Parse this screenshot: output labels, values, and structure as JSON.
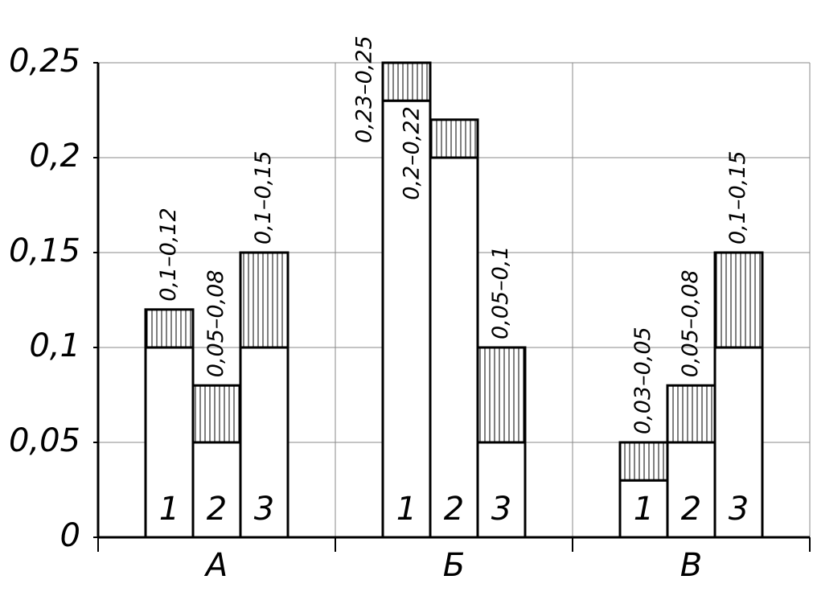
{
  "chart_data": {
    "type": "range_bar",
    "categories": [
      "А",
      "Б",
      "В"
    ],
    "series": [
      {
        "name": "1",
        "low": [
          0.1,
          0.23,
          0.03
        ],
        "high": [
          0.12,
          0.25,
          0.05
        ],
        "value_labels": [
          "0,1–0,12",
          "0,23–0,25",
          "0,03–0,05"
        ]
      },
      {
        "name": "2",
        "low": [
          0.05,
          0.2,
          0.05
        ],
        "high": [
          0.08,
          0.22,
          0.08
        ],
        "value_labels": [
          "0,05–0,08",
          "0,2–0,22",
          "0,05–0,08"
        ]
      },
      {
        "name": "3",
        "low": [
          0.1,
          0.05,
          0.1
        ],
        "high": [
          0.15,
          0.1,
          0.15
        ],
        "value_labels": [
          "0,1–0,15",
          "0,05–0,1",
          "0,1–0,15"
        ]
      }
    ],
    "ylim": [
      0,
      0.25
    ],
    "yticks": [
      0,
      {
        "value": 0.05,
        "label": "0,05"
      },
      {
        "value": 0.1,
        "label": "0,1"
      },
      {
        "value": 0.15,
        "label": "0,15"
      },
      {
        "value": 0.2,
        "label": "0,2"
      },
      {
        "value": 0.25,
        "label": "0,25"
      }
    ],
    "grid": true,
    "color": "#000000"
  }
}
